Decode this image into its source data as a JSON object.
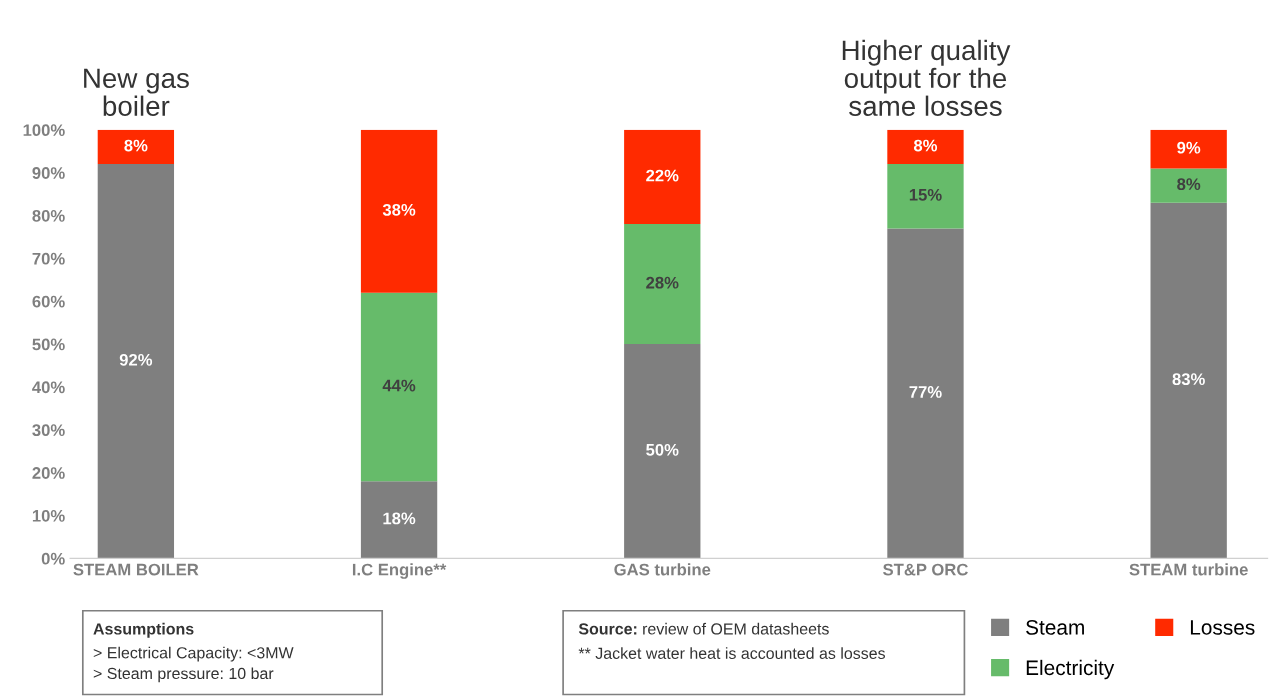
{
  "chart_data": {
    "type": "bar",
    "stacked": true,
    "categories": [
      "STEAM BOILER",
      "I.C Engine**",
      "GAS turbine",
      "ST&P ORC",
      "STEAM turbine"
    ],
    "series": [
      {
        "name": "Steam",
        "color": "#7f7f7f",
        "values": [
          92,
          18,
          50,
          77,
          83
        ],
        "value_labels": [
          "92%",
          "18%",
          "50%",
          "77%",
          "83%"
        ]
      },
      {
        "name": "Electricity",
        "color": "#66bb6a",
        "values": [
          0,
          44,
          28,
          15,
          8
        ],
        "value_labels": [
          null,
          "44%",
          "28%",
          "15%",
          "8%"
        ]
      },
      {
        "name": "Losses",
        "color": "#ff2a00",
        "values": [
          8,
          38,
          22,
          8,
          9
        ],
        "value_labels": [
          "8%",
          "38%",
          "22%",
          "8%",
          "9%"
        ]
      }
    ],
    "ylim": [
      0,
      100
    ],
    "yticks": [
      {
        "value": 0,
        "label": "0%"
      },
      {
        "value": 10,
        "label": "10%"
      },
      {
        "value": 20,
        "label": "20%"
      },
      {
        "value": 30,
        "label": "30%"
      },
      {
        "value": 40,
        "label": "40%"
      },
      {
        "value": 50,
        "label": "50%"
      },
      {
        "value": 60,
        "label": "60%"
      },
      {
        "value": 70,
        "label": "70%"
      },
      {
        "value": 80,
        "label": "80%"
      },
      {
        "value": 90,
        "label": "90%"
      },
      {
        "value": 100,
        "label": "100%"
      }
    ],
    "grid": false,
    "legend": "bottom right",
    "annotations": [
      {
        "text": "New gas\nboiler",
        "x": "STEAM BOILER",
        "y": 100
      },
      {
        "text": "Higher quality\noutput for the\nsame losses",
        "x": "ST&P ORC",
        "y": 100
      },
      "Assumptions",
      "> Electrical Capacity: <3MW\n> Steam pressure: 10 bar",
      "Source:",
      "review of OEM datasheets\n** Jacket water heat is accounted as losses"
    ]
  }
}
